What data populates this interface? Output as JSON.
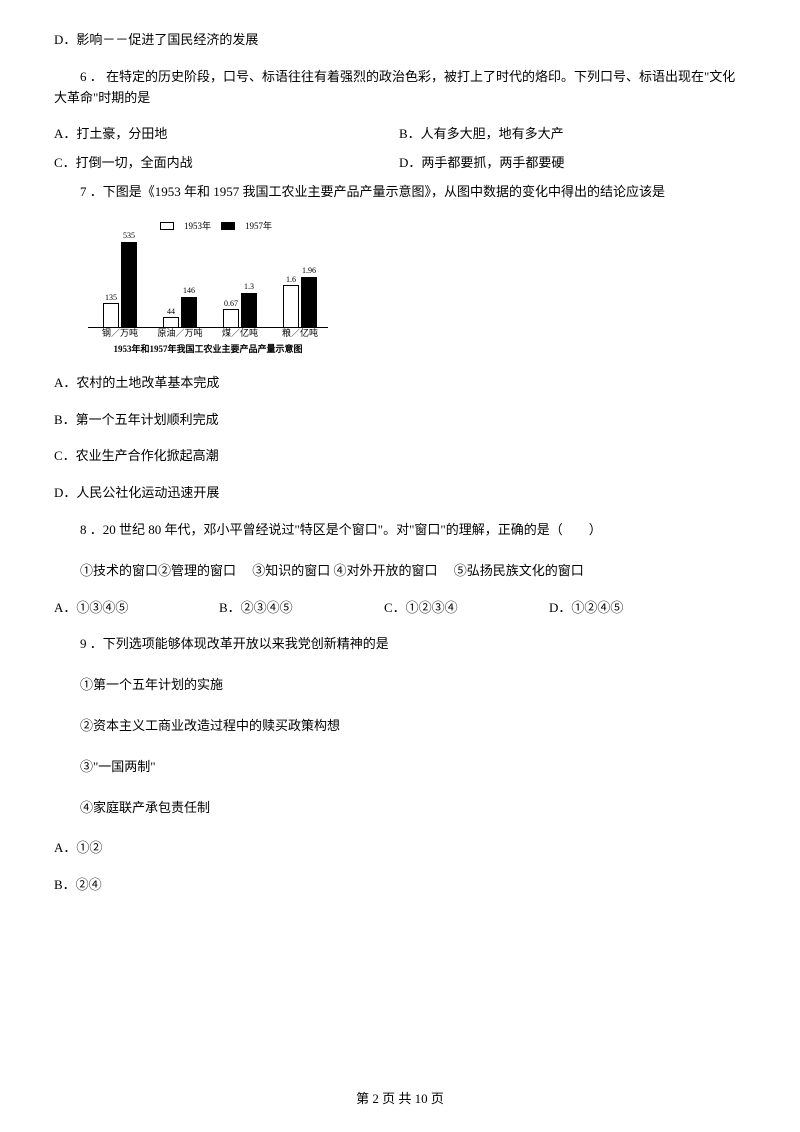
{
  "q5": {
    "optionD": "D．影响－－促进了国民经济的发展"
  },
  "q6": {
    "stem": "6 ． 在特定的历史阶段，口号、标语往往有着强烈的政治色彩，被打上了时代的烙印。下列口号、标语出现在\"文化大革命\"时期的是",
    "A": "A．打土豪，分田地",
    "B": "B．人有多大胆，地有多大产",
    "C": "C．打倒一切，全面内战",
    "D": "D．两手都要抓，两手都要硬"
  },
  "q7": {
    "stem": "7 ．下图是《1953 年和 1957 我国工农业主要产品产量示意图》，从图中数据的变化中得出的结论应该是",
    "A": "A．农村的土地改革基本完成",
    "B": "B．第一个五年计划顺利完成",
    "C": "C．农业生产合作化掀起高潮",
    "D": "D．人民公社化运动迅速开展"
  },
  "chart": {
    "legend": {
      "y1953": "1953年",
      "y1957": "1957年"
    },
    "groups": [
      {
        "label": "钢／万吨",
        "v53": "135",
        "v57": "535",
        "h53": 24,
        "h57": 85
      },
      {
        "label": "原油／万吨",
        "v53": "44",
        "v57": "146",
        "h53": 10,
        "h57": 30
      },
      {
        "label": "煤／亿吨",
        "v53": "0.67",
        "v57": "1.3",
        "h53": 18,
        "h57": 34
      },
      {
        "label": "粮／亿吨",
        "v53": "1.6",
        "v57": "1.96",
        "h53": 42,
        "h57": 50
      }
    ],
    "caption": "1953年和1957年我国工农业主要产品产量示意图",
    "colors": {
      "y1953": "#ffffff",
      "y1957": "#000000",
      "border": "#000000"
    }
  },
  "q8": {
    "stem": "8 ．20 世纪 80 年代，邓小平曾经说过\"特区是个窗口\"。对\"窗口\"的理解，正确的是（　　）",
    "sub": "①技术的窗口②管理的窗口　 ③知识的窗口 ④对外开放的窗口　 ⑤弘扬民族文化的窗口",
    "A": "A．①③④⑤",
    "B": "B．②③④⑤",
    "C": "C．①②③④",
    "D": "D．①②④⑤"
  },
  "q9": {
    "stem": "9 ．下列选项能够体现改革开放以来我党创新精神的是",
    "s1": "①第一个五年计划的实施",
    "s2": "②资本主义工商业改造过程中的赎买政策构想",
    "s3": "③\"一国两制\"",
    "s4": "④家庭联产承包责任制",
    "A": "A．①②",
    "B": "B．②④"
  },
  "footer": "第 2 页 共 10 页"
}
